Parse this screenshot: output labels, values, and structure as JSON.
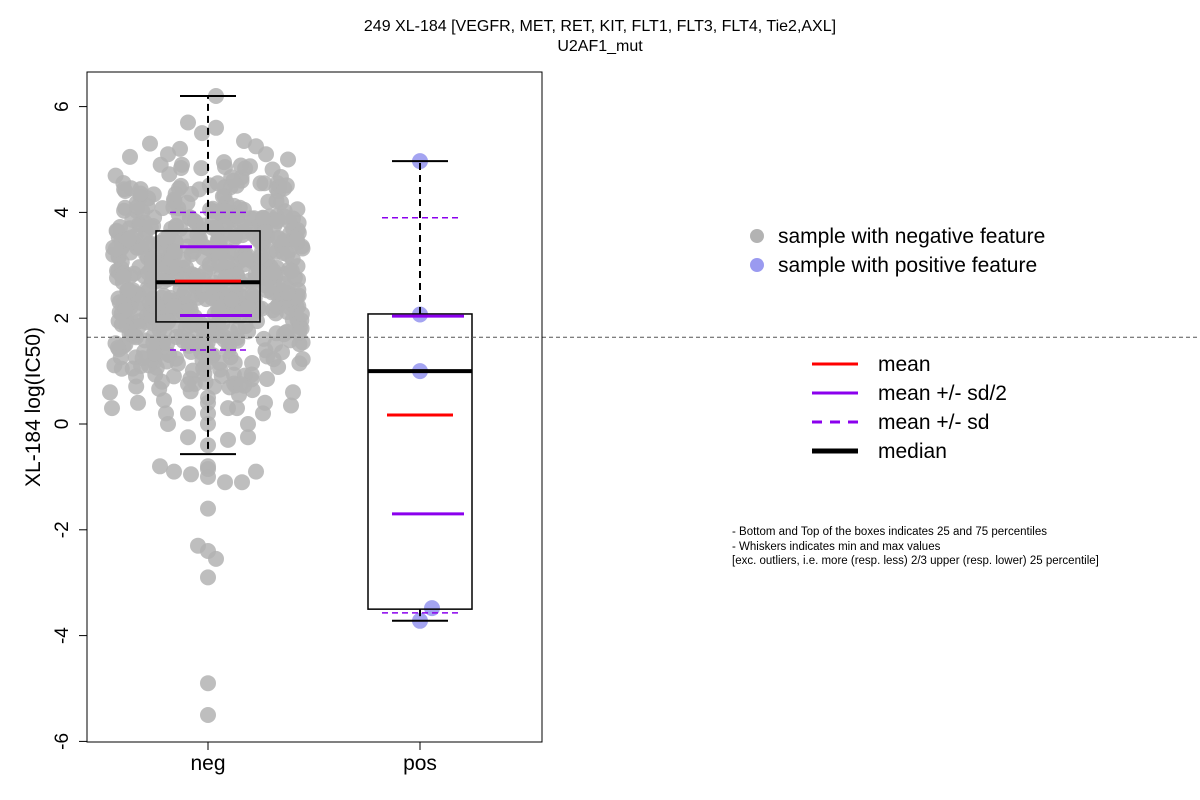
{
  "chart_data": {
    "type": "box",
    "title": "249 XL-184 [VEGFR, MET, RET, KIT, FLT1, FLT3, FLT4, Tie2,AXL]",
    "subtitle": "U2AF1_mut",
    "ylabel": "XL-184 log(IC50)",
    "xlabel": "",
    "ylim": [
      -6,
      6.5
    ],
    "yticks": [
      "-6",
      "-4",
      "-2",
      "0",
      "2",
      "4",
      "6"
    ],
    "categories": [
      "neg",
      "pos"
    ],
    "reference_line": 1.64,
    "colors": {
      "neg_points": "#b3b3b3",
      "pos_points": "#9a9af0",
      "mean": "#ff0000",
      "sd": "#8b00ee",
      "median": "#000000"
    },
    "groups": [
      {
        "name": "neg",
        "box": {
          "q1": 1.93,
          "median": 2.68,
          "q3": 3.65,
          "whisker_low": -0.57,
          "whisker_high": 6.2
        },
        "mean": 2.7,
        "mean_plus_half_sd": 3.35,
        "mean_minus_half_sd": 2.05,
        "mean_plus_sd": 4.0,
        "mean_minus_sd": 1.4,
        "low_points": [
          -0.25,
          -0.3,
          -0.4,
          -0.25,
          -0.8,
          -0.9,
          -0.95,
          -1.0,
          -1.1,
          -1.1,
          -0.9,
          -0.85,
          -0.8,
          -1.6,
          -2.3,
          -2.55,
          -2.4,
          -2.9,
          -4.9,
          -5.5,
          0.0,
          0.0,
          0.0,
          0.2,
          0.2,
          0.5,
          0.3,
          0.4
        ],
        "high_points": [
          6.2,
          5.7,
          5.6,
          5.5,
          5.35,
          5.3,
          5.25,
          5.2,
          5.1,
          5.1,
          5.05,
          5.0,
          4.95,
          4.9
        ]
      },
      {
        "name": "pos",
        "box": {
          "q1": -3.5,
          "median": 1.0,
          "q3": 2.08,
          "whisker_low": -3.72,
          "whisker_high": 4.97
        },
        "mean": 0.17,
        "mean_plus_half_sd": 2.04,
        "mean_minus_half_sd": -1.7,
        "mean_plus_sd": 3.9,
        "mean_minus_sd": -3.57,
        "points": [
          4.97,
          2.07,
          1.0,
          -3.48,
          -3.72
        ]
      }
    ],
    "legend_points": [
      "sample with negative feature",
      "sample with positive feature"
    ],
    "legend_lines": [
      "mean",
      "mean +/- sd/2",
      "mean +/- sd",
      "median"
    ],
    "notes": [
      "- Bottom and Top of the boxes indicates 25 and 75 percentiles",
      "- Whiskers indicates min and max values",
      "[exc. outliers, i.e. more (resp. less) 2/3 upper (resp. lower) 25 percentile]"
    ]
  }
}
